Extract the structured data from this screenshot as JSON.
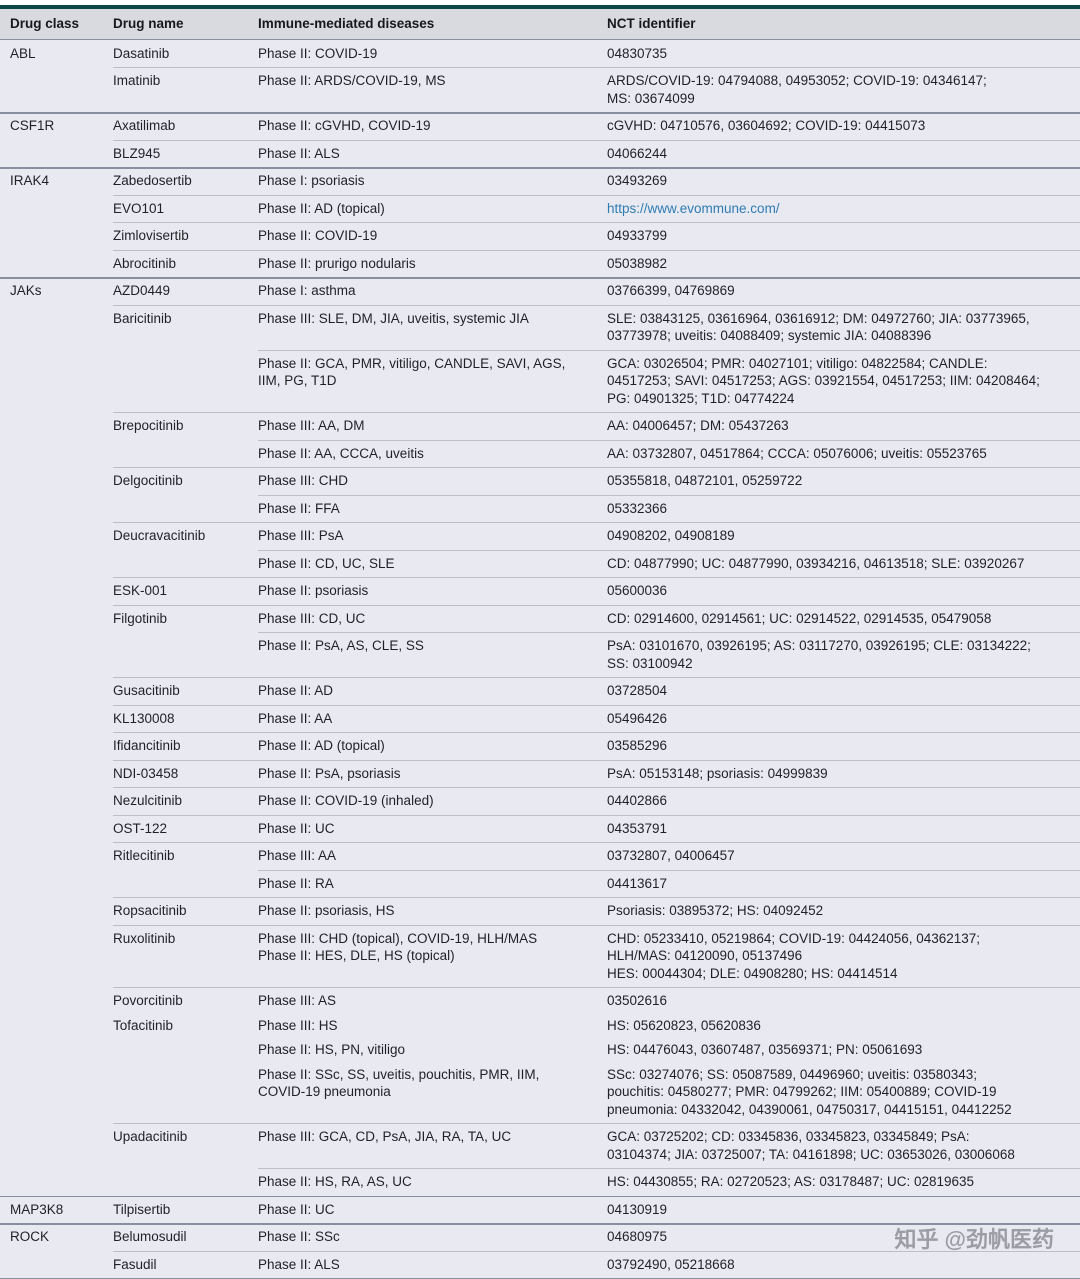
{
  "table": {
    "accent_color": "#0d4847",
    "link_color": "#2e7cb4",
    "columns": [
      "Drug class",
      "Drug name",
      "Immune-mediated diseases",
      "NCT identifier"
    ],
    "rows": [
      {
        "sep": "class",
        "cls": "ABL",
        "drug": "Dasatinib",
        "diseases": [
          "Phase II: COVID-19"
        ],
        "nct": [
          "04830735"
        ]
      },
      {
        "sep": "drug",
        "drug": "Imatinib",
        "diseases": [
          "Phase II: ARDS/COVID-19, MS"
        ],
        "nct": [
          "ARDS/COVID-19: 04794088, 04953052; COVID-19: 04346147;",
          "MS: 03674099"
        ]
      },
      {
        "sep": "class",
        "cls": "CSF1R",
        "drug": "Axatilimab",
        "diseases": [
          "Phase II: cGVHD, COVID-19"
        ],
        "nct": [
          "cGVHD: 04710576, 03604692; COVID-19: 04415073"
        ]
      },
      {
        "sep": "drug",
        "drug": "BLZ945",
        "diseases": [
          "Phase II: ALS"
        ],
        "nct": [
          "04066244"
        ]
      },
      {
        "sep": "class",
        "cls": "IRAK4",
        "drug": "Zabedosertib",
        "diseases": [
          "Phase I: psoriasis"
        ],
        "nct": [
          "03493269"
        ]
      },
      {
        "sep": "drug",
        "drug": "EVO101",
        "diseases": [
          "Phase II: AD (topical)"
        ],
        "link": true,
        "nct": [
          "https://www.evommune.com/"
        ]
      },
      {
        "sep": "drug",
        "drug": "Zimlovisertib",
        "diseases": [
          "Phase II: COVID-19"
        ],
        "nct": [
          "04933799"
        ]
      },
      {
        "sep": "drug",
        "drug": "Abrocitinib",
        "diseases": [
          "Phase II: prurigo nodularis"
        ],
        "nct": [
          "05038982"
        ]
      },
      {
        "sep": "class",
        "cls": "JAKs",
        "drug": "AZD0449",
        "diseases": [
          "Phase I: asthma"
        ],
        "nct": [
          "03766399, 04769869"
        ]
      },
      {
        "sep": "drug",
        "drug": "Baricitinib",
        "diseases": [
          "Phase III: SLE, DM, JIA, uveitis, systemic JIA"
        ],
        "nct": [
          "SLE: 03843125, 03616964, 03616912; DM: 04972760; JIA: 03773965,",
          "03773978; uveitis: 04088409; systemic JIA: 04088396"
        ]
      },
      {
        "sep": "row",
        "diseases": [
          "Phase II: GCA, PMR, vitiligo, CANDLE, SAVI, AGS,",
          "IIM, PG, T1D"
        ],
        "nct": [
          "GCA: 03026504; PMR: 04027101; vitiligo: 04822584; CANDLE:",
          "04517253; SAVI: 04517253; AGS: 03921554, 04517253; IIM: 04208464;",
          "PG: 04901325; T1D: 04774224"
        ]
      },
      {
        "sep": "drug",
        "drug": "Brepocitinib",
        "diseases": [
          "Phase III: AA, DM"
        ],
        "nct": [
          "AA: 04006457; DM: 05437263"
        ]
      },
      {
        "sep": "row",
        "diseases": [
          "Phase II: AA, CCCA, uveitis"
        ],
        "nct": [
          "AA: 03732807, 04517864; CCCA: 05076006; uveitis: 05523765"
        ]
      },
      {
        "sep": "drug",
        "drug": "Delgocitinib",
        "diseases": [
          "Phase III: CHD"
        ],
        "nct": [
          "05355818, 04872101, 05259722"
        ]
      },
      {
        "sep": "row",
        "diseases": [
          "Phase II: FFA"
        ],
        "nct": [
          "05332366"
        ]
      },
      {
        "sep": "drug",
        "drug": "Deucravacitinib",
        "diseases": [
          "Phase III: PsA"
        ],
        "nct": [
          "04908202, 04908189"
        ]
      },
      {
        "sep": "row",
        "diseases": [
          "Phase II: CD, UC, SLE"
        ],
        "nct": [
          "CD: 04877990; UC: 04877990, 03934216, 04613518; SLE: 03920267"
        ]
      },
      {
        "sep": "drug",
        "drug": "ESK-001",
        "diseases": [
          "Phase II: psoriasis"
        ],
        "nct": [
          "05600036"
        ]
      },
      {
        "sep": "drug",
        "drug": "Filgotinib",
        "diseases": [
          "Phase III: CD, UC"
        ],
        "nct": [
          "CD: 02914600, 02914561; UC: 02914522, 02914535, 05479058"
        ]
      },
      {
        "sep": "row",
        "diseases": [
          "Phase II: PsA, AS, CLE, SS"
        ],
        "nct": [
          "PsA: 03101670, 03926195; AS: 03117270, 03926195; CLE: 03134222;",
          "SS: 03100942"
        ]
      },
      {
        "sep": "drug",
        "drug": "Gusacitinib",
        "diseases": [
          "Phase II: AD"
        ],
        "nct": [
          "03728504"
        ]
      },
      {
        "sep": "drug",
        "drug": "KL130008",
        "diseases": [
          "Phase II: AA"
        ],
        "nct": [
          "05496426"
        ]
      },
      {
        "sep": "drug",
        "drug": "Ifidancitinib",
        "diseases": [
          "Phase II: AD (topical)"
        ],
        "nct": [
          "03585296"
        ]
      },
      {
        "sep": "drug",
        "drug": "NDI-03458",
        "diseases": [
          "Phase II: PsA, psoriasis"
        ],
        "nct": [
          "PsA: 05153148; psoriasis: 04999839"
        ]
      },
      {
        "sep": "drug",
        "drug": "Nezulcitinib",
        "diseases": [
          "Phase II: COVID-19 (inhaled)"
        ],
        "nct": [
          "04402866"
        ]
      },
      {
        "sep": "drug",
        "drug": "OST-122",
        "diseases": [
          "Phase II: UC"
        ],
        "nct": [
          "04353791"
        ]
      },
      {
        "sep": "drug",
        "drug": "Ritlecitinib",
        "diseases": [
          "Phase III: AA"
        ],
        "nct": [
          "03732807, 04006457"
        ]
      },
      {
        "sep": "row",
        "diseases": [
          "Phase II: RA"
        ],
        "nct": [
          "04413617"
        ]
      },
      {
        "sep": "drug",
        "drug": "Ropsacitinib",
        "diseases": [
          "Phase II: psoriasis, HS"
        ],
        "nct": [
          "Psoriasis: 03895372; HS: 04092452"
        ]
      },
      {
        "sep": "drug",
        "drug": "Ruxolitinib",
        "diseases": [
          "Phase III: CHD (topical), COVID-19, HLH/MAS",
          "Phase II: HES, DLE, HS (topical)"
        ],
        "nct": [
          "CHD: 05233410, 05219864; COVID-19: 04424056, 04362137;",
          "HLH/MAS: 04120090, 05137496",
          "HES: 00044304; DLE: 04908280; HS: 04414514"
        ]
      },
      {
        "sep": "drug",
        "drug": "Povorcitinib",
        "diseases": [
          "Phase III: AS"
        ],
        "nct": [
          "03502616"
        ]
      },
      {
        "sep": "none",
        "drug": "Tofacitinib",
        "diseases": [
          "Phase III: HS"
        ],
        "nct": [
          "HS: 05620823, 05620836"
        ]
      },
      {
        "sep": "none",
        "diseases": [
          "Phase II: HS, PN, vitiligo"
        ],
        "nct": [
          "HS: 04476043, 03607487, 03569371; PN: 05061693"
        ]
      },
      {
        "sep": "none",
        "diseases": [
          "Phase II: SSc, SS, uveitis, pouchitis, PMR, IIM,",
          "COVID-19 pneumonia"
        ],
        "nct": [
          "SSc: 03274076; SS: 05087589, 04496960; uveitis: 03580343;",
          "pouchitis: 04580277; PMR: 04799262; IIM: 05400889; COVID-19",
          "pneumonia: 04332042, 04390061, 04750317, 04415151, 04412252"
        ]
      },
      {
        "sep": "drug",
        "drug": "Upadacitinib",
        "diseases": [
          "Phase III: GCA, CD, PsA, JIA, RA, TA, UC"
        ],
        "nct": [
          "GCA: 03725202; CD: 03345836, 03345823, 03345849; PsA:",
          "03104374; JIA: 03725007; TA: 04161898; UC: 03653026, 03006068"
        ]
      },
      {
        "sep": "row",
        "diseases": [
          "Phase II: HS, RA, AS, UC"
        ],
        "nct": [
          "HS: 04430855; RA: 02720523; AS: 03178487; UC: 02819635"
        ]
      },
      {
        "sep": "class",
        "cls": "MAP3K8",
        "drug": "Tilpisertib",
        "diseases": [
          "Phase II: UC"
        ],
        "nct": [
          "04130919"
        ]
      },
      {
        "sep": "class",
        "cls": "ROCK",
        "drug": "Belumosudil",
        "diseases": [
          "Phase II: SSc"
        ],
        "nct": [
          "04680975"
        ]
      },
      {
        "sep": "drug",
        "drug": "Fasudil",
        "diseases": [
          "Phase II: ALS"
        ],
        "nct": [
          "03792490, 05218668"
        ]
      }
    ]
  },
  "watermark": {
    "brand": "知乎",
    "handle": "@劲帆医药"
  }
}
